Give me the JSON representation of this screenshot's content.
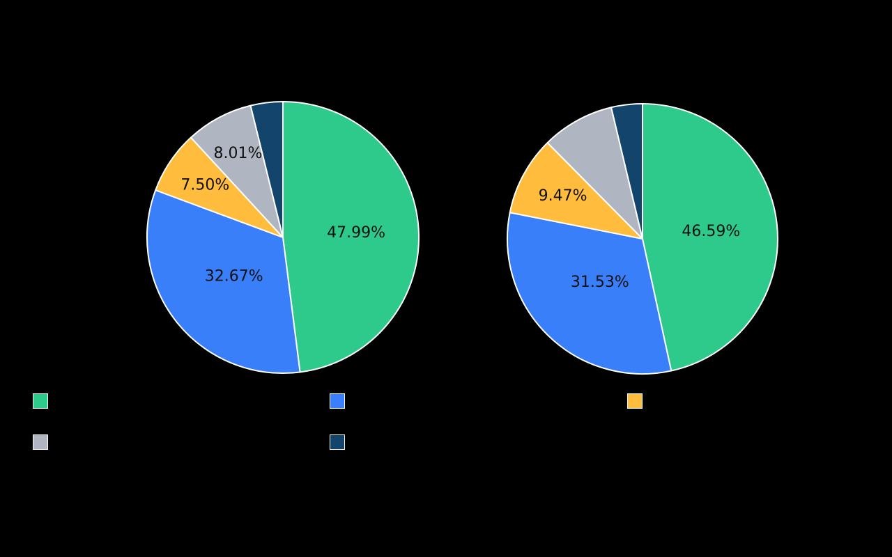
{
  "chart_data": [
    {
      "type": "pie",
      "categories": [
        "",
        "",
        "",
        "",
        ""
      ],
      "values": [
        47.99,
        32.67,
        7.5,
        8.01,
        3.83
      ],
      "labels": [
        "47.99%",
        "32.67%",
        "7.50%",
        "8.01%",
        ""
      ],
      "colors": [
        "#2ECA8B",
        "#3A7FFA",
        "#FFBC3D",
        "#B0B6C1",
        "#12446C"
      ]
    },
    {
      "type": "pie",
      "categories": [
        "",
        "",
        "",
        "",
        ""
      ],
      "values": [
        46.59,
        31.53,
        9.47,
        8.69,
        3.72
      ],
      "labels": [
        "46.59%",
        "31.53%",
        "9.47%",
        "",
        ""
      ],
      "colors": [
        "#2ECA8B",
        "#3A7FFA",
        "#FFBC3D",
        "#B0B6C1",
        "#12446C"
      ]
    }
  ],
  "legend": {
    "items": [
      {
        "label": "",
        "color": "#2ECA8B"
      },
      {
        "label": "",
        "color": "#3A7FFA"
      },
      {
        "label": "",
        "color": "#FFBC3D"
      },
      {
        "label": "",
        "color": "#B0B6C1"
      },
      {
        "label": "",
        "color": "#12446C"
      }
    ]
  },
  "background": "#000000",
  "slice_border_color": "#FFFFFF"
}
